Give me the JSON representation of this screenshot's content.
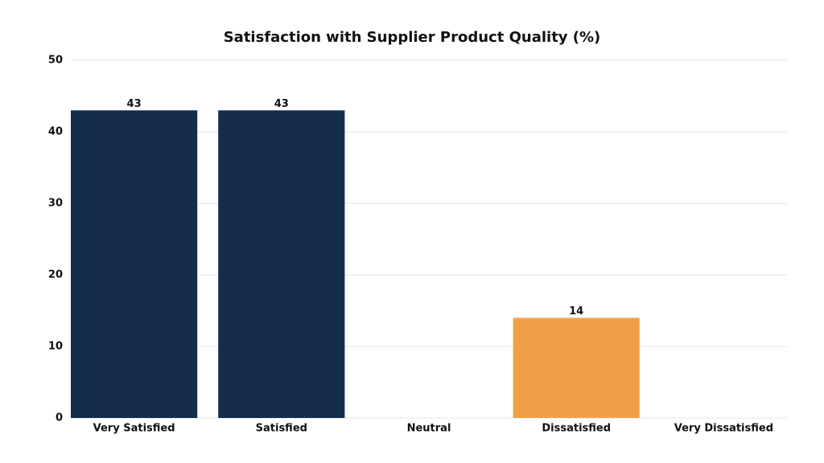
{
  "chart_data": {
    "type": "bar",
    "title": "Satisfaction with Supplier Product Quality (%)",
    "categories": [
      "Very Satisfied",
      "Satisfied",
      "Neutral",
      "Dissatisfied",
      "Very Dissatisfied"
    ],
    "values": [
      43,
      43,
      null,
      14,
      null
    ],
    "colors": [
      "#142d4c",
      "#142d4c",
      "#142d4c",
      "#f0a148",
      "#f0a148"
    ],
    "ylim": [
      0,
      50
    ],
    "yticks": [
      0,
      10,
      20,
      30,
      40,
      50
    ],
    "grid": true
  }
}
